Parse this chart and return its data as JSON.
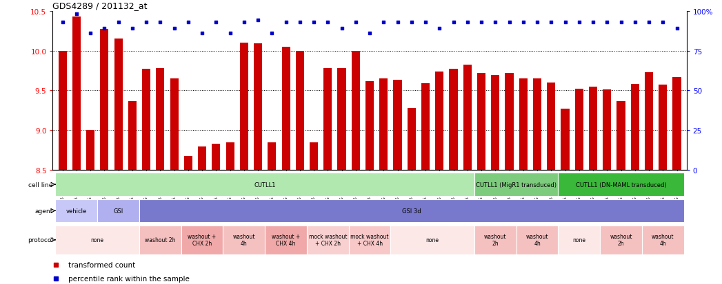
{
  "title": "GDS4289 / 201132_at",
  "ylim_left": [
    8.5,
    10.5
  ],
  "ylim_right": [
    0,
    100
  ],
  "yticks_left": [
    8.5,
    9.0,
    9.5,
    10.0,
    10.5
  ],
  "yticks_right": [
    0,
    25,
    50,
    75,
    100
  ],
  "bar_color": "#cc0000",
  "dot_color": "#0000cc",
  "samples": [
    "GSM731500",
    "GSM731501",
    "GSM731502",
    "GSM731503",
    "GSM731504",
    "GSM731505",
    "GSM731518",
    "GSM731519",
    "GSM731520",
    "GSM731506",
    "GSM731507",
    "GSM731508",
    "GSM731509",
    "GSM731510",
    "GSM731511",
    "GSM731512",
    "GSM731513",
    "GSM731514",
    "GSM731515",
    "GSM731516",
    "GSM731517",
    "GSM731521",
    "GSM731522",
    "GSM731523",
    "GSM731524",
    "GSM731525",
    "GSM731526",
    "GSM731527",
    "GSM731528",
    "GSM731529",
    "GSM731531",
    "GSM731532",
    "GSM731533",
    "GSM731534",
    "GSM731535",
    "GSM731536",
    "GSM731537",
    "GSM731538",
    "GSM731539",
    "GSM731540",
    "GSM731541",
    "GSM731542",
    "GSM731543",
    "GSM731544",
    "GSM731545"
  ],
  "bar_values": [
    10.0,
    10.43,
    9.0,
    10.27,
    10.15,
    9.37,
    9.77,
    9.78,
    9.65,
    8.68,
    8.8,
    8.83,
    8.85,
    10.1,
    10.09,
    8.85,
    10.05,
    10.0,
    8.85,
    9.78,
    9.78,
    10.0,
    9.62,
    9.65,
    9.63,
    9.28,
    9.59,
    9.74,
    9.77,
    9.82,
    9.72,
    9.69,
    9.72,
    9.65,
    9.65,
    9.6,
    9.27,
    9.52,
    9.55,
    9.51,
    9.37,
    9.58,
    9.73,
    9.57,
    9.67
  ],
  "dot_percentiles": [
    93,
    98,
    86,
    89,
    93,
    89,
    93,
    93,
    89,
    93,
    86,
    93,
    86,
    93,
    94,
    86,
    93,
    93,
    93,
    93,
    89,
    93,
    86,
    93,
    93,
    93,
    93,
    89,
    93,
    93,
    93,
    93,
    93,
    93,
    93,
    93,
    93,
    93,
    93,
    93,
    93,
    93,
    93,
    93,
    89
  ],
  "cell_line_groups": [
    {
      "label": "CUTLL1",
      "start": 0,
      "end": 30,
      "color": "#b0e8b0"
    },
    {
      "label": "CUTLL1 (MigR1 transduced)",
      "start": 30,
      "end": 36,
      "color": "#7dcc7d"
    },
    {
      "label": "CUTLL1 (DN-MAML transduced)",
      "start": 36,
      "end": 45,
      "color": "#3ab83a"
    }
  ],
  "agent_groups": [
    {
      "label": "vehicle",
      "start": 0,
      "end": 3,
      "color": "#c8c8f8"
    },
    {
      "label": "GSI",
      "start": 3,
      "end": 6,
      "color": "#b0b0f0"
    },
    {
      "label": "GSI 3d",
      "start": 6,
      "end": 45,
      "color": "#7878cc"
    }
  ],
  "protocol_groups": [
    {
      "label": "none",
      "start": 0,
      "end": 6,
      "color": "#fde8e8"
    },
    {
      "label": "washout 2h",
      "start": 6,
      "end": 9,
      "color": "#f5c0c0"
    },
    {
      "label": "washout +\nCHX 2h",
      "start": 9,
      "end": 12,
      "color": "#f0a8a8"
    },
    {
      "label": "washout\n4h",
      "start": 12,
      "end": 15,
      "color": "#f5c0c0"
    },
    {
      "label": "washout +\nCHX 4h",
      "start": 15,
      "end": 18,
      "color": "#f0a8a8"
    },
    {
      "label": "mock washout\n+ CHX 2h",
      "start": 18,
      "end": 21,
      "color": "#f8d0d0"
    },
    {
      "label": "mock washout\n+ CHX 4h",
      "start": 21,
      "end": 24,
      "color": "#f8c8c8"
    },
    {
      "label": "none",
      "start": 24,
      "end": 30,
      "color": "#fde8e8"
    },
    {
      "label": "washout\n2h",
      "start": 30,
      "end": 33,
      "color": "#f5c0c0"
    },
    {
      "label": "washout\n4h",
      "start": 33,
      "end": 36,
      "color": "#f5c0c0"
    },
    {
      "label": "none",
      "start": 36,
      "end": 39,
      "color": "#fde8e8"
    },
    {
      "label": "washout\n2h",
      "start": 39,
      "end": 42,
      "color": "#f5c0c0"
    },
    {
      "label": "washout\n4h",
      "start": 42,
      "end": 45,
      "color": "#f5c0c0"
    }
  ],
  "row_labels": [
    "cell line",
    "agent",
    "protocol"
  ],
  "legend_items": [
    {
      "color": "#cc0000",
      "label": "transformed count"
    },
    {
      "color": "#0000cc",
      "label": "percentile rank within the sample"
    }
  ],
  "grid_lines": [
    9.0,
    9.5,
    10.0
  ],
  "bg_color": "#ffffff"
}
